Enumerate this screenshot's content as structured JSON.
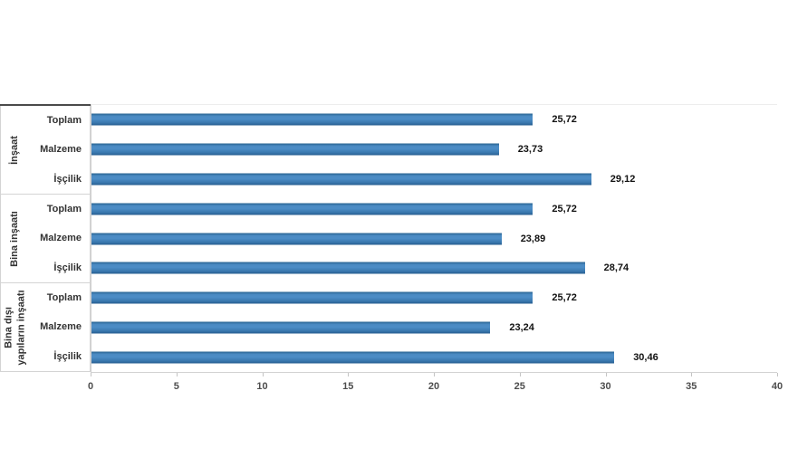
{
  "page": {
    "background_color": "#ffffff"
  },
  "chart_data": {
    "type": "bar",
    "orientation": "horizontal",
    "title": "",
    "xlabel": "",
    "ylabel": "",
    "xlim": [
      0,
      40
    ],
    "xticks": [
      "0",
      "5",
      "10",
      "15",
      "20",
      "25",
      "30",
      "35",
      "40"
    ],
    "grid": "off",
    "legend": "off",
    "bar_color": "#3577b5",
    "axis_color": "#cfcfcf",
    "label_box_top_border_color": "#4a4a4a",
    "groups": [
      {
        "label": "İnşaat",
        "rows": [
          {
            "category": "Toplam",
            "value": 25.72,
            "value_label": "25,72"
          },
          {
            "category": "Malzeme",
            "value": 23.73,
            "value_label": "23,73"
          },
          {
            "category": "İşçilik",
            "value": 29.12,
            "value_label": "29,12"
          }
        ]
      },
      {
        "label": "Bina inşaatı",
        "rows": [
          {
            "category": "Toplam",
            "value": 25.72,
            "value_label": "25,72"
          },
          {
            "category": "Malzeme",
            "value": 23.89,
            "value_label": "23,89"
          },
          {
            "category": "İşçilik",
            "value": 28.74,
            "value_label": "28,74"
          }
        ]
      },
      {
        "label": "Bina dışı\nyapıların inşaatı",
        "rows": [
          {
            "category": "Toplam",
            "value": 25.72,
            "value_label": "25,72"
          },
          {
            "category": "Malzeme",
            "value": 23.24,
            "value_label": "23,24"
          },
          {
            "category": "İşçilik",
            "value": 30.46,
            "value_label": "30,46"
          }
        ]
      }
    ]
  }
}
